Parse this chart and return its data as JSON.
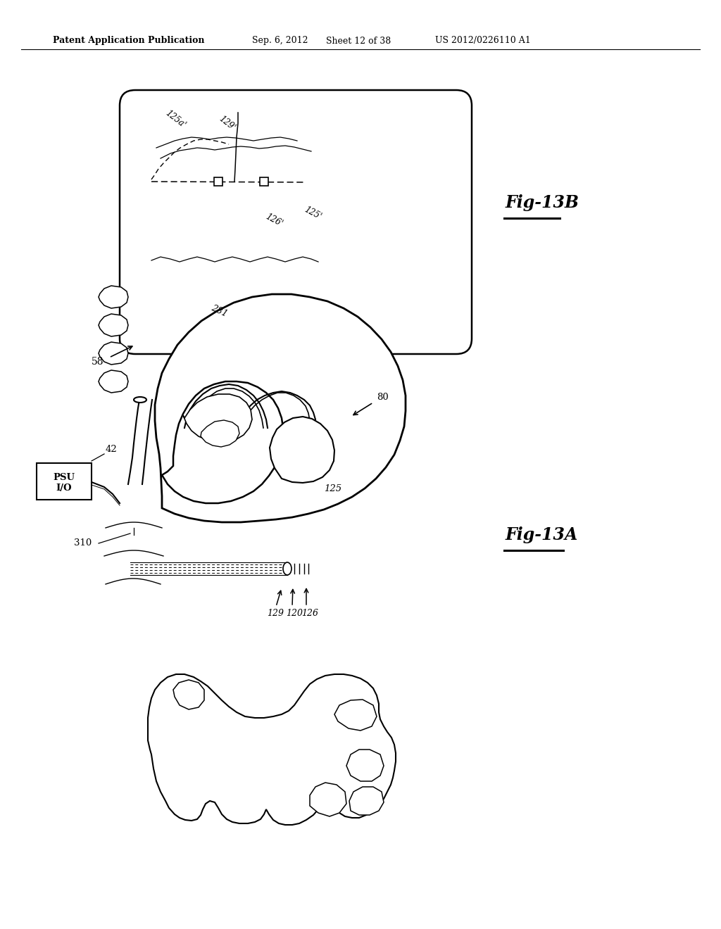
{
  "background_color": "#ffffff",
  "header_text": "Patent Application Publication",
  "header_date": "Sep. 6, 2012",
  "header_sheet": "Sheet 12 of 38",
  "header_patent": "US 2012/0226110 A1",
  "fig_13b_label": "Fig-13B",
  "fig_13a_label": "Fig-13A",
  "label_125a_prime": "125a'",
  "label_129_prime": "129'",
  "label_126_prime": "126'",
  "label_125_prime": "125'",
  "label_281": "281",
  "label_58": "58",
  "label_42": "42",
  "label_psu_io": "PSU\nI/O",
  "label_310": "310",
  "label_80": "80",
  "label_125": "125",
  "label_129": "129",
  "label_120": "120",
  "label_126": "126"
}
